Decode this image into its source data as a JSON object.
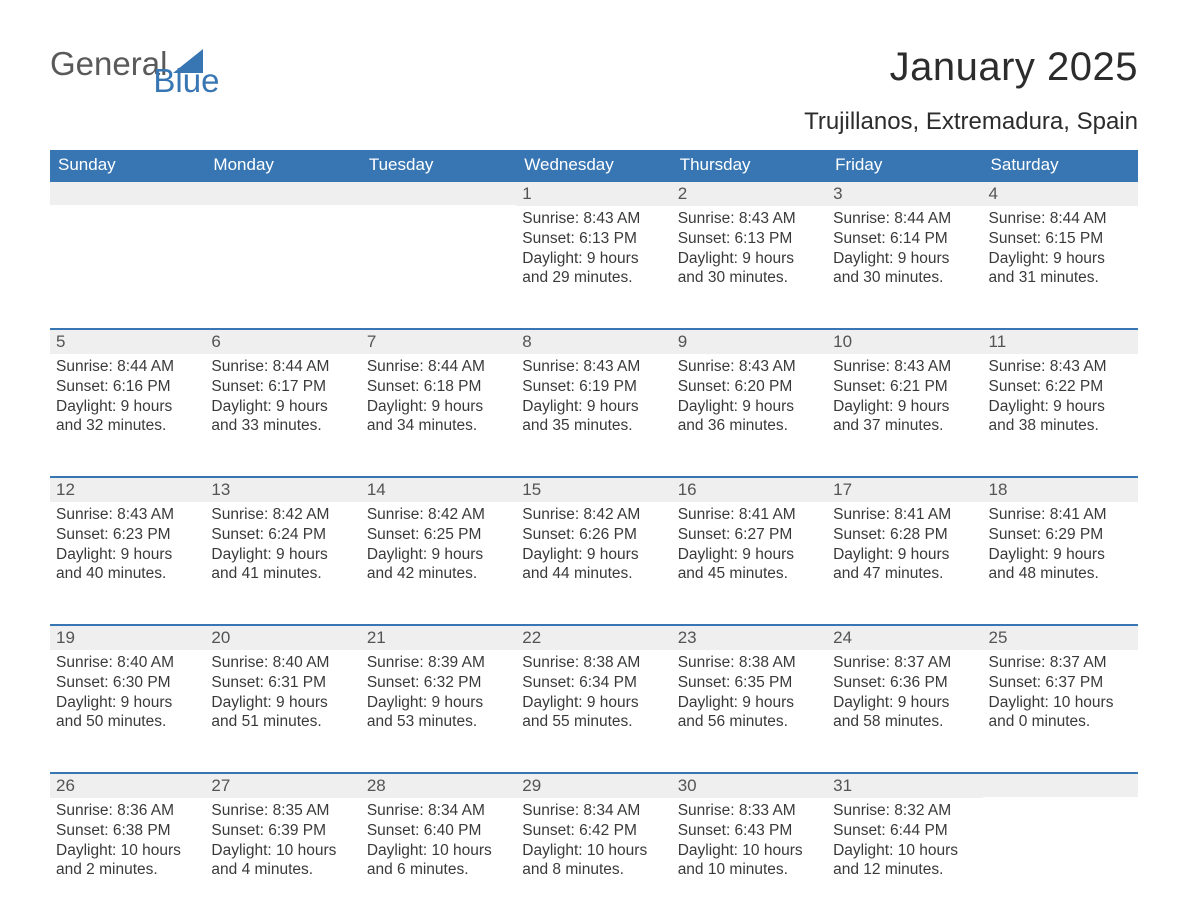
{
  "brand": {
    "part1": "General",
    "part2": "Blue",
    "tri_color": "#3876b3"
  },
  "title": "January 2025",
  "location": "Trujillanos, Extremadura, Spain",
  "colors": {
    "header_bg": "#3876b3",
    "header_text": "#ffffff",
    "daynum_bg": "#efefef",
    "daynum_border": "#3876b3",
    "body_bg": "#ffffff",
    "text": "#3a3a3a"
  },
  "fonts": {
    "title_pt": 40,
    "location_pt": 24,
    "th_pt": 17,
    "daynum_pt": 17,
    "cell_pt": 15.5
  },
  "weekdays": [
    "Sunday",
    "Monday",
    "Tuesday",
    "Wednesday",
    "Thursday",
    "Friday",
    "Saturday"
  ],
  "weeks": [
    [
      {
        "n": "",
        "lines": []
      },
      {
        "n": "",
        "lines": []
      },
      {
        "n": "",
        "lines": []
      },
      {
        "n": "1",
        "lines": [
          "Sunrise: 8:43 AM",
          "Sunset: 6:13 PM",
          "Daylight: 9 hours",
          "and 29 minutes."
        ]
      },
      {
        "n": "2",
        "lines": [
          "Sunrise: 8:43 AM",
          "Sunset: 6:13 PM",
          "Daylight: 9 hours",
          "and 30 minutes."
        ]
      },
      {
        "n": "3",
        "lines": [
          "Sunrise: 8:44 AM",
          "Sunset: 6:14 PM",
          "Daylight: 9 hours",
          "and 30 minutes."
        ]
      },
      {
        "n": "4",
        "lines": [
          "Sunrise: 8:44 AM",
          "Sunset: 6:15 PM",
          "Daylight: 9 hours",
          "and 31 minutes."
        ]
      }
    ],
    [
      {
        "n": "5",
        "lines": [
          "Sunrise: 8:44 AM",
          "Sunset: 6:16 PM",
          "Daylight: 9 hours",
          "and 32 minutes."
        ]
      },
      {
        "n": "6",
        "lines": [
          "Sunrise: 8:44 AM",
          "Sunset: 6:17 PM",
          "Daylight: 9 hours",
          "and 33 minutes."
        ]
      },
      {
        "n": "7",
        "lines": [
          "Sunrise: 8:44 AM",
          "Sunset: 6:18 PM",
          "Daylight: 9 hours",
          "and 34 minutes."
        ]
      },
      {
        "n": "8",
        "lines": [
          "Sunrise: 8:43 AM",
          "Sunset: 6:19 PM",
          "Daylight: 9 hours",
          "and 35 minutes."
        ]
      },
      {
        "n": "9",
        "lines": [
          "Sunrise: 8:43 AM",
          "Sunset: 6:20 PM",
          "Daylight: 9 hours",
          "and 36 minutes."
        ]
      },
      {
        "n": "10",
        "lines": [
          "Sunrise: 8:43 AM",
          "Sunset: 6:21 PM",
          "Daylight: 9 hours",
          "and 37 minutes."
        ]
      },
      {
        "n": "11",
        "lines": [
          "Sunrise: 8:43 AM",
          "Sunset: 6:22 PM",
          "Daylight: 9 hours",
          "and 38 minutes."
        ]
      }
    ],
    [
      {
        "n": "12",
        "lines": [
          "Sunrise: 8:43 AM",
          "Sunset: 6:23 PM",
          "Daylight: 9 hours",
          "and 40 minutes."
        ]
      },
      {
        "n": "13",
        "lines": [
          "Sunrise: 8:42 AM",
          "Sunset: 6:24 PM",
          "Daylight: 9 hours",
          "and 41 minutes."
        ]
      },
      {
        "n": "14",
        "lines": [
          "Sunrise: 8:42 AM",
          "Sunset: 6:25 PM",
          "Daylight: 9 hours",
          "and 42 minutes."
        ]
      },
      {
        "n": "15",
        "lines": [
          "Sunrise: 8:42 AM",
          "Sunset: 6:26 PM",
          "Daylight: 9 hours",
          "and 44 minutes."
        ]
      },
      {
        "n": "16",
        "lines": [
          "Sunrise: 8:41 AM",
          "Sunset: 6:27 PM",
          "Daylight: 9 hours",
          "and 45 minutes."
        ]
      },
      {
        "n": "17",
        "lines": [
          "Sunrise: 8:41 AM",
          "Sunset: 6:28 PM",
          "Daylight: 9 hours",
          "and 47 minutes."
        ]
      },
      {
        "n": "18",
        "lines": [
          "Sunrise: 8:41 AM",
          "Sunset: 6:29 PM",
          "Daylight: 9 hours",
          "and 48 minutes."
        ]
      }
    ],
    [
      {
        "n": "19",
        "lines": [
          "Sunrise: 8:40 AM",
          "Sunset: 6:30 PM",
          "Daylight: 9 hours",
          "and 50 minutes."
        ]
      },
      {
        "n": "20",
        "lines": [
          "Sunrise: 8:40 AM",
          "Sunset: 6:31 PM",
          "Daylight: 9 hours",
          "and 51 minutes."
        ]
      },
      {
        "n": "21",
        "lines": [
          "Sunrise: 8:39 AM",
          "Sunset: 6:32 PM",
          "Daylight: 9 hours",
          "and 53 minutes."
        ]
      },
      {
        "n": "22",
        "lines": [
          "Sunrise: 8:38 AM",
          "Sunset: 6:34 PM",
          "Daylight: 9 hours",
          "and 55 minutes."
        ]
      },
      {
        "n": "23",
        "lines": [
          "Sunrise: 8:38 AM",
          "Sunset: 6:35 PM",
          "Daylight: 9 hours",
          "and 56 minutes."
        ]
      },
      {
        "n": "24",
        "lines": [
          "Sunrise: 8:37 AM",
          "Sunset: 6:36 PM",
          "Daylight: 9 hours",
          "and 58 minutes."
        ]
      },
      {
        "n": "25",
        "lines": [
          "Sunrise: 8:37 AM",
          "Sunset: 6:37 PM",
          "Daylight: 10 hours",
          "and 0 minutes."
        ]
      }
    ],
    [
      {
        "n": "26",
        "lines": [
          "Sunrise: 8:36 AM",
          "Sunset: 6:38 PM",
          "Daylight: 10 hours",
          "and 2 minutes."
        ]
      },
      {
        "n": "27",
        "lines": [
          "Sunrise: 8:35 AM",
          "Sunset: 6:39 PM",
          "Daylight: 10 hours",
          "and 4 minutes."
        ]
      },
      {
        "n": "28",
        "lines": [
          "Sunrise: 8:34 AM",
          "Sunset: 6:40 PM",
          "Daylight: 10 hours",
          "and 6 minutes."
        ]
      },
      {
        "n": "29",
        "lines": [
          "Sunrise: 8:34 AM",
          "Sunset: 6:42 PM",
          "Daylight: 10 hours",
          "and 8 minutes."
        ]
      },
      {
        "n": "30",
        "lines": [
          "Sunrise: 8:33 AM",
          "Sunset: 6:43 PM",
          "Daylight: 10 hours",
          "and 10 minutes."
        ]
      },
      {
        "n": "31",
        "lines": [
          "Sunrise: 8:32 AM",
          "Sunset: 6:44 PM",
          "Daylight: 10 hours",
          "and 12 minutes."
        ]
      },
      {
        "n": "",
        "lines": []
      }
    ]
  ]
}
